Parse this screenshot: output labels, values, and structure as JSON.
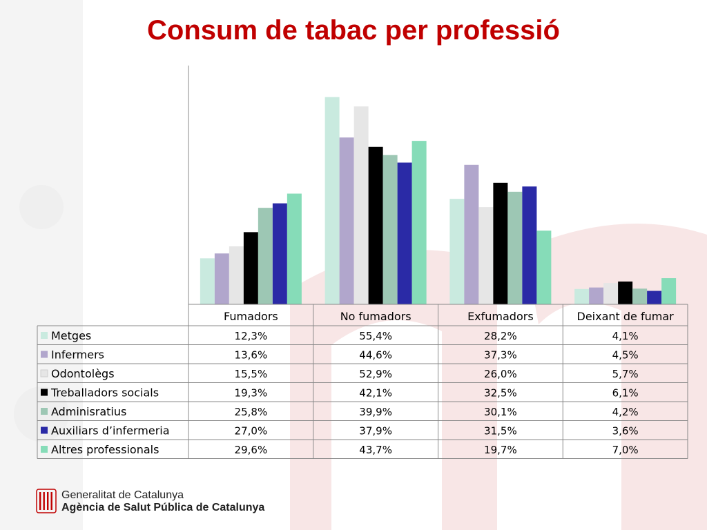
{
  "title": "Consum de tabac per professió",
  "footer": {
    "org_line1": "Generalitat de Catalunya",
    "org_line2": "Agència de Salut Pública de Catalunya"
  },
  "chart_data": {
    "type": "bar",
    "categories": [
      "Fumadors",
      "No fumadors",
      "Exfumadors",
      "Deixant de fumar"
    ],
    "ylim": [
      0,
      60
    ],
    "grid": false,
    "legend": "data-table",
    "series": [
      {
        "name": "Metges",
        "color": "#c9eadf",
        "values": [
          12.3,
          55.4,
          28.2,
          4.1
        ],
        "labels": [
          "12,3%",
          "55,4%",
          "28,2%",
          "4,1%"
        ]
      },
      {
        "name": "Infermers",
        "color": "#b1a6cc",
        "values": [
          13.6,
          44.6,
          37.3,
          4.5
        ],
        "labels": [
          "13,6%",
          "44,6%",
          "37,3%",
          "4,5%"
        ]
      },
      {
        "name": "Odontolègs",
        "color": "#e6e6e6",
        "values": [
          15.5,
          52.9,
          26.0,
          5.7
        ],
        "labels": [
          "15,5%",
          "52,9%",
          "26,0%",
          "5,7%"
        ]
      },
      {
        "name": "Treballadors socials",
        "color": "#000000",
        "values": [
          19.3,
          42.1,
          32.5,
          6.1
        ],
        "labels": [
          "19,3%",
          "42,1%",
          "32,5%",
          "6,1%"
        ]
      },
      {
        "name": "Adminisratius",
        "color": "#9dc7b4",
        "values": [
          25.8,
          39.9,
          30.1,
          4.2
        ],
        "labels": [
          "25,8%",
          "39,9%",
          "30,1%",
          "4,2%"
        ]
      },
      {
        "name": "Auxiliars d’infermeria",
        "color": "#2a2aa6",
        "values": [
          27.0,
          37.9,
          31.5,
          3.6
        ],
        "labels": [
          "27,0%",
          "37,9%",
          "31,5%",
          "3,6%"
        ]
      },
      {
        "name": "Altres professionals",
        "color": "#86dcb8",
        "values": [
          29.6,
          43.7,
          19.7,
          7.0
        ],
        "labels": [
          "29,6%",
          "43,7%",
          "19,7%",
          "7,0%"
        ]
      }
    ]
  }
}
